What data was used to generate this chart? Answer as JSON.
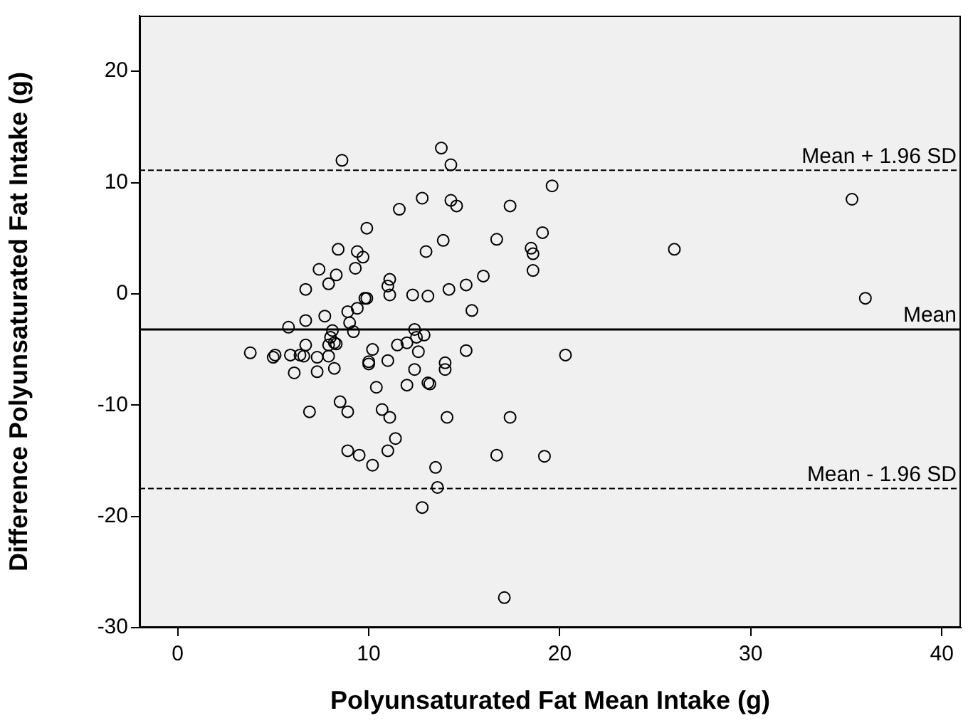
{
  "chart_data": {
    "type": "scatter",
    "xlabel": "Polyunsaturated Fat Mean Intake (g)",
    "ylabel": "Difference Polyunsaturated Fat Intake (g)",
    "xlim": [
      -2,
      41
    ],
    "ylim": [
      -30,
      25
    ],
    "xticks": [
      0,
      10,
      20,
      30,
      40
    ],
    "yticks": [
      -30,
      -20,
      -10,
      0,
      10,
      20
    ],
    "grid": false,
    "legend": false,
    "marker": "circle",
    "series": [
      {
        "color": "#000000",
        "x": [
          8.6,
          13.8,
          14.3,
          12.8,
          14.3,
          14.6,
          11.6,
          17.4,
          9.9,
          8.4,
          9.4,
          9.7,
          13.0,
          13.9,
          16.7,
          7.4,
          9.3,
          8.3,
          7.9,
          6.7,
          11.1,
          11.0,
          11.1,
          12.3,
          13.1,
          14.2,
          15.1,
          16.0,
          15.4,
          9.8,
          9.9,
          9.4,
          8.9,
          9.0,
          9.2,
          7.7,
          6.7,
          5.8,
          8.1,
          8.0,
          8.2,
          8.3,
          7.9,
          6.7,
          12.4,
          12.5,
          12.9,
          12.0,
          11.5,
          10.2,
          12.6,
          15.1,
          11.0,
          10.0,
          10.0,
          14.0,
          3.8,
          5.0,
          5.1,
          5.9,
          6.4,
          6.6,
          7.3,
          7.9,
          6.1,
          7.3,
          8.2,
          12.4,
          14.0,
          10.4,
          12.0,
          13.1,
          13.2,
          6.9,
          8.5,
          8.9,
          10.7,
          11.1,
          14.1,
          17.4,
          11.4,
          11.0,
          8.9,
          9.5,
          10.2,
          16.7,
          13.5,
          13.6,
          12.8,
          17.1,
          19.2,
          20.3,
          19.6,
          19.1,
          18.5,
          18.6,
          18.6,
          26.0,
          35.3,
          36.0
        ],
        "values": [
          12.0,
          13.1,
          11.6,
          8.6,
          8.4,
          7.9,
          7.6,
          7.9,
          5.9,
          4.0,
          3.8,
          3.3,
          3.8,
          4.8,
          4.9,
          2.2,
          2.3,
          1.7,
          0.9,
          0.4,
          1.3,
          0.7,
          -0.1,
          -0.1,
          -0.2,
          0.4,
          0.8,
          1.6,
          -1.5,
          -0.4,
          -0.4,
          -1.3,
          -1.6,
          -2.6,
          -3.4,
          -2.0,
          -2.4,
          -3.0,
          -3.3,
          -3.9,
          -4.4,
          -4.5,
          -4.6,
          -4.6,
          -3.2,
          -3.9,
          -3.7,
          -4.4,
          -4.6,
          -5.0,
          -5.2,
          -5.1,
          -6.0,
          -6.1,
          -6.3,
          -6.2,
          -5.3,
          -5.7,
          -5.5,
          -5.5,
          -5.5,
          -5.6,
          -5.7,
          -5.6,
          -7.1,
          -7.0,
          -6.7,
          -6.8,
          -6.8,
          -8.4,
          -8.2,
          -8.0,
          -8.1,
          -10.6,
          -9.7,
          -10.6,
          -10.4,
          -11.1,
          -11.1,
          -11.1,
          -13.0,
          -14.1,
          -14.1,
          -14.5,
          -15.4,
          -14.5,
          -15.6,
          -17.4,
          -19.2,
          -27.3,
          -14.6,
          -5.5,
          9.7,
          5.5,
          4.1,
          3.6,
          2.1,
          4.0,
          8.5,
          -0.4
        ]
      }
    ],
    "ref_lines": [
      {
        "axis": "y",
        "value": 11.1,
        "label": "Mean + 1.96 SD",
        "line_style": "dashed"
      },
      {
        "axis": "y",
        "value": -3.2,
        "label": "Mean",
        "line_style": "solid"
      },
      {
        "axis": "y",
        "value": -17.5,
        "label": "Mean - 1.96 SD",
        "line_style": "dashed"
      }
    ]
  }
}
